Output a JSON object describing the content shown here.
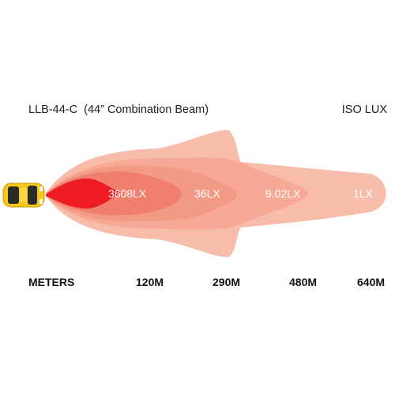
{
  "header": {
    "model": "LLB-44-C",
    "beam_description": "(44” Combination Beam)",
    "unit_label": "ISO LUX"
  },
  "zones": [
    {
      "label": "3608LX",
      "color": "#ee1c23"
    },
    {
      "label": "36LX",
      "color": "#f05a55"
    },
    {
      "label": "9.02LX",
      "color": "#f28a7e"
    },
    {
      "label": "1LX",
      "color": "#f8b9a8"
    }
  ],
  "axis": {
    "unit_label": "METERS",
    "ticks": [
      "120M",
      "290M",
      "480M",
      "640M"
    ]
  },
  "vehicle": {
    "icon": "car-icon",
    "color": "#f7c81b"
  }
}
